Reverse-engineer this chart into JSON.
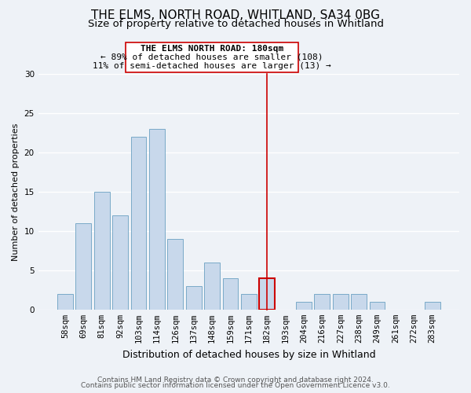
{
  "title": "THE ELMS, NORTH ROAD, WHITLAND, SA34 0BG",
  "subtitle": "Size of property relative to detached houses in Whitland",
  "xlabel": "Distribution of detached houses by size in Whitland",
  "ylabel": "Number of detached properties",
  "bar_labels": [
    "58sqm",
    "69sqm",
    "81sqm",
    "92sqm",
    "103sqm",
    "114sqm",
    "126sqm",
    "137sqm",
    "148sqm",
    "159sqm",
    "171sqm",
    "182sqm",
    "193sqm",
    "204sqm",
    "216sqm",
    "227sqm",
    "238sqm",
    "249sqm",
    "261sqm",
    "272sqm",
    "283sqm"
  ],
  "bar_values": [
    2,
    11,
    15,
    12,
    22,
    23,
    9,
    3,
    6,
    4,
    2,
    4,
    0,
    1,
    2,
    2,
    2,
    1,
    0,
    0,
    1
  ],
  "bar_color": "#c8d8eb",
  "bar_edge_color": "#7aaac8",
  "highlight_bar_index": 11,
  "highlight_line_color": "#cc0000",
  "ylim": [
    0,
    30
  ],
  "yticks": [
    0,
    5,
    10,
    15,
    20,
    25,
    30
  ],
  "annotation_title": "THE ELMS NORTH ROAD: 180sqm",
  "annotation_line1": "← 89% of detached houses are smaller (108)",
  "annotation_line2": "11% of semi-detached houses are larger (13) →",
  "footer1": "Contains HM Land Registry data © Crown copyright and database right 2024.",
  "footer2": "Contains public sector information licensed under the Open Government Licence v3.0.",
  "bg_color": "#eef2f7",
  "grid_color": "#ffffff",
  "title_fontsize": 11,
  "subtitle_fontsize": 9.5,
  "xlabel_fontsize": 9,
  "ylabel_fontsize": 8,
  "tick_fontsize": 7.5,
  "annotation_fontsize": 8,
  "footer_fontsize": 6.5
}
